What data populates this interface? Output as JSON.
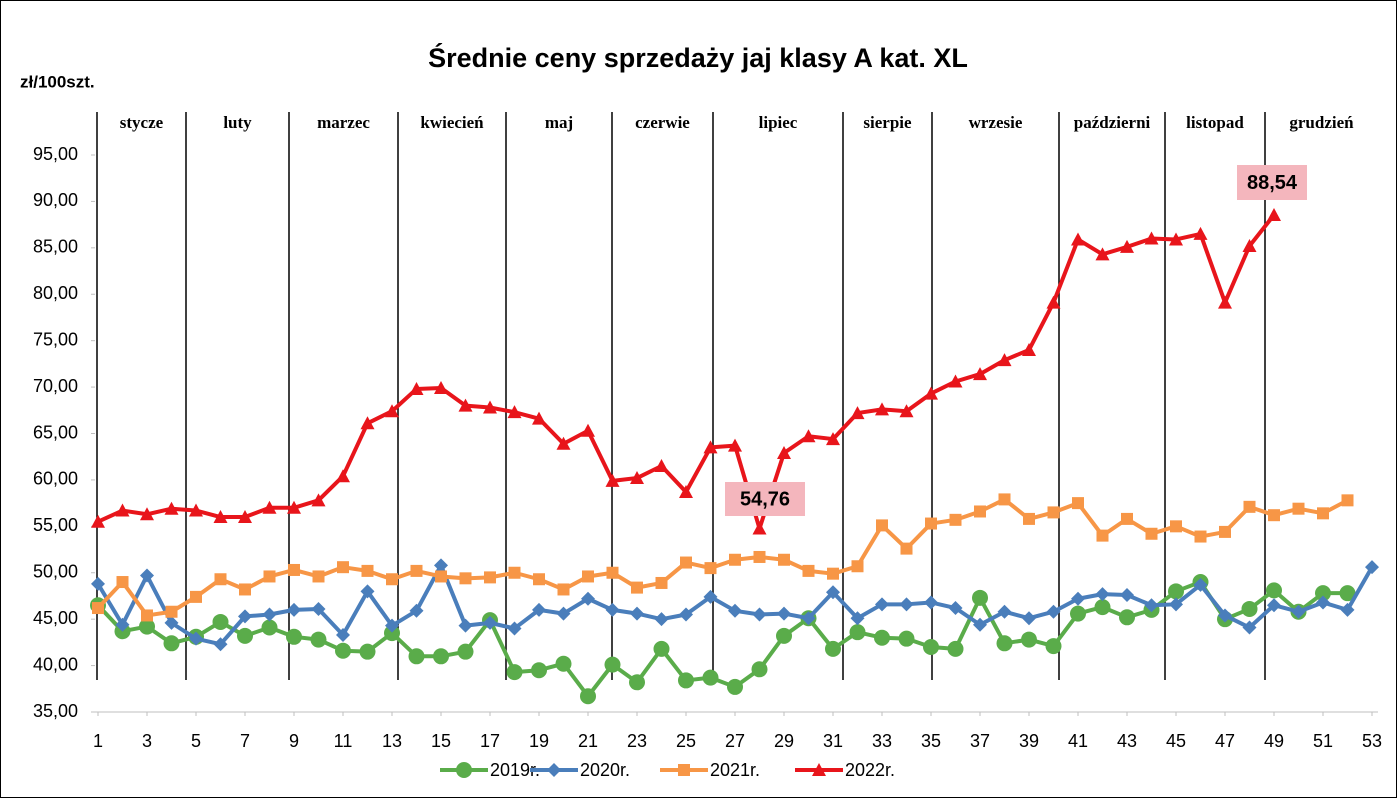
{
  "chart_data": {
    "type": "line",
    "title": "Średnie ceny sprzedaży jaj klasy A kat.  XL",
    "y_label": "zł/100szt.",
    "months": [
      "stycze",
      "luty",
      "marzec",
      "kwiecień",
      "maj",
      "czerwie",
      "lipiec",
      "sierpie",
      "wrzesie",
      "październi",
      "listopad",
      "grudzień"
    ],
    "annotations": [
      "54,76",
      "88,54"
    ],
    "x": [
      1,
      2,
      3,
      4,
      5,
      6,
      7,
      8,
      9,
      10,
      11,
      12,
      13,
      14,
      15,
      16,
      17,
      18,
      19,
      20,
      21,
      22,
      23,
      24,
      25,
      26,
      27,
      28,
      29,
      30,
      31,
      32,
      33,
      34,
      35,
      36,
      37,
      38,
      39,
      40,
      41,
      42,
      43,
      44,
      45,
      46,
      47,
      48,
      49,
      50,
      51,
      52,
      53
    ],
    "xlim": [
      1,
      53
    ],
    "xticks": [
      1,
      3,
      5,
      7,
      9,
      11,
      13,
      15,
      17,
      19,
      21,
      23,
      25,
      27,
      29,
      31,
      33,
      35,
      37,
      39,
      41,
      43,
      45,
      47,
      49,
      51,
      53
    ],
    "ylim": [
      35,
      95
    ],
    "yticks": [
      {
        "value": 35,
        "label": "35,00"
      },
      {
        "value": 40,
        "label": "40,00"
      },
      {
        "value": 45,
        "label": "45,00"
      },
      {
        "value": 50,
        "label": "50,00"
      },
      {
        "value": 55,
        "label": "55,00"
      },
      {
        "value": 60,
        "label": "60,00"
      },
      {
        "value": 65,
        "label": "65,00"
      },
      {
        "value": 70,
        "label": "70,00"
      },
      {
        "value": 75,
        "label": "75,00"
      },
      {
        "value": 80,
        "label": "80,00"
      },
      {
        "value": 85,
        "label": "85,00"
      },
      {
        "value": 90,
        "label": "90,00"
      },
      {
        "value": 95,
        "label": "95,00"
      }
    ],
    "grid": false,
    "legend": "bottom",
    "series": [
      {
        "name": "2019r.",
        "color": "#5aac4a",
        "marker": "circle",
        "values": [
          46.5,
          43.7,
          44.2,
          42.4,
          43.1,
          44.7,
          43.2,
          44.1,
          43.1,
          42.8,
          41.6,
          41.5,
          43.5,
          41.0,
          41.0,
          41.5,
          44.9,
          39.3,
          39.5,
          40.2,
          36.7,
          40.1,
          38.2,
          41.8,
          38.4,
          38.7,
          37.7,
          39.6,
          43.2,
          45.1,
          41.8,
          43.6,
          43.0,
          42.9,
          42.0,
          41.8,
          47.3,
          42.4,
          42.8,
          42.1,
          45.6,
          46.3,
          45.2,
          46.0,
          48.0,
          49.0,
          45.0,
          46.1,
          48.1,
          45.8,
          47.8,
          47.8,
          null
        ]
      },
      {
        "name": "2020r.",
        "color": "#4a7ebb",
        "marker": "diamond",
        "values": [
          48.8,
          44.4,
          49.7,
          44.6,
          42.9,
          42.3,
          45.3,
          45.5,
          46.0,
          46.1,
          43.3,
          48.0,
          44.3,
          45.9,
          50.8,
          44.3,
          44.6,
          44.0,
          46.0,
          45.6,
          47.2,
          46.0,
          45.6,
          45.0,
          45.5,
          47.4,
          45.9,
          45.5,
          45.6,
          45.1,
          47.9,
          45.1,
          46.6,
          46.6,
          46.8,
          46.2,
          44.4,
          45.8,
          45.1,
          45.8,
          47.2,
          47.7,
          47.6,
          46.5,
          46.6,
          48.7,
          45.4,
          44.1,
          46.5,
          45.8,
          46.8,
          46.0,
          50.6
        ]
      },
      {
        "name": "2021r.",
        "color": "#f79646",
        "marker": "square",
        "values": [
          46.2,
          49.0,
          45.4,
          45.8,
          47.4,
          49.3,
          48.2,
          49.6,
          50.3,
          49.6,
          50.6,
          50.2,
          49.3,
          50.2,
          49.6,
          49.4,
          49.5,
          50.0,
          49.3,
          48.2,
          49.6,
          50.0,
          48.4,
          48.9,
          51.1,
          50.5,
          51.4,
          51.7,
          51.4,
          50.2,
          49.9,
          50.7,
          55.1,
          52.6,
          55.3,
          55.7,
          56.6,
          57.9,
          55.8,
          56.5,
          57.5,
          54.0,
          55.8,
          54.2,
          55.0,
          53.9,
          54.4,
          57.1,
          56.2,
          56.9,
          56.4,
          57.8,
          null
        ]
      },
      {
        "name": "2022r.",
        "color": "#e8151b",
        "marker": "triangle",
        "values": [
          55.5,
          56.7,
          56.3,
          56.9,
          56.7,
          56.0,
          56.0,
          57.0,
          57.0,
          57.8,
          60.4,
          66.1,
          67.4,
          69.8,
          69.9,
          68.0,
          67.8,
          67.3,
          66.6,
          63.9,
          65.3,
          59.9,
          60.2,
          61.5,
          58.7,
          63.5,
          63.7,
          54.76,
          62.9,
          64.7,
          64.4,
          67.2,
          67.6,
          67.4,
          69.3,
          70.6,
          71.4,
          72.9,
          74.0,
          79.1,
          85.9,
          84.3,
          85.1,
          86.0,
          85.9,
          86.5,
          79.1,
          85.2,
          88.54,
          null,
          null,
          null,
          null
        ]
      }
    ]
  }
}
